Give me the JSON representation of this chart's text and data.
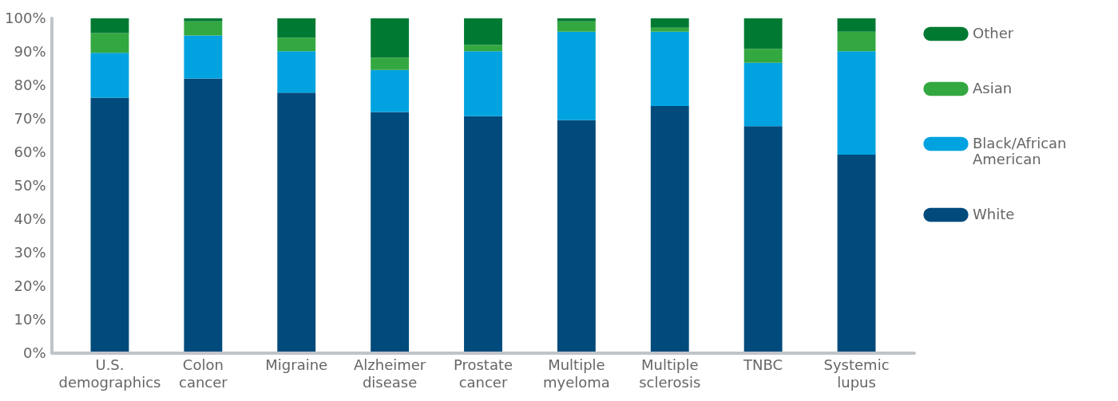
{
  "chart_data": {
    "type": "bar",
    "stacked": true,
    "categories": [
      "U.S. demographics",
      "Colon cancer",
      "Migraine",
      "Alzheimer disease",
      "Prostate cancer",
      "Multiple myeloma",
      "Multiple sclerosis",
      "TNBC",
      "Systemic lupus"
    ],
    "series": [
      {
        "name": "White",
        "color": "#004a7c",
        "values": [
          76.3,
          82,
          77.8,
          72,
          70.8,
          69.6,
          73.8,
          67.8,
          59.3
        ]
      },
      {
        "name": "Black/African American",
        "color": "#00a3e0",
        "values": [
          13.4,
          12.9,
          12.4,
          12.6,
          19.4,
          26.4,
          22.2,
          18.9,
          30.9
        ]
      },
      {
        "name": "Asian",
        "color": "#34a840",
        "values": [
          5.9,
          4.2,
          4,
          3.7,
          1.9,
          3.1,
          1.2,
          4.2,
          5.8
        ]
      },
      {
        "name": "Other",
        "color": "#007a33",
        "values": [
          4.4,
          0.9,
          5.8,
          11.7,
          7.9,
          0.9,
          2.8,
          9.1,
          4
        ]
      }
    ],
    "ylim": [
      0,
      100
    ],
    "yticks": [
      {
        "value": 0,
        "label": "0%"
      },
      {
        "value": 10,
        "label": "10%"
      },
      {
        "value": 20,
        "label": "20%"
      },
      {
        "value": 30,
        "label": "30%"
      },
      {
        "value": 40,
        "label": "40%"
      },
      {
        "value": 50,
        "label": "50%"
      },
      {
        "value": 60,
        "label": "60%"
      },
      {
        "value": 70,
        "label": "70%"
      },
      {
        "value": 80,
        "label": "80%"
      },
      {
        "value": 90,
        "label": "90%"
      },
      {
        "value": 100,
        "label": "100%"
      }
    ],
    "legend": "right",
    "grid": false
  }
}
